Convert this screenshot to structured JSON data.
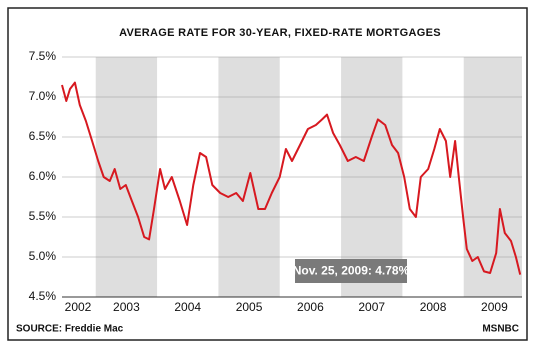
{
  "chart_data": {
    "type": "line",
    "title": "AVERAGE RATE FOR 30-YEAR, FIXED-RATE MORTGAGES",
    "source": "SOURCE: Freddie Mac",
    "credit": "MSNBC",
    "annotation": "Nov. 25, 2009: 4.78%",
    "x": [
      2002.45,
      2002.52,
      2002.58,
      2002.66,
      2002.74,
      2002.84,
      2002.94,
      2003.04,
      2003.13,
      2003.23,
      2003.31,
      2003.4,
      2003.49,
      2003.59,
      2003.69,
      2003.79,
      2003.87,
      2003.95,
      2004.05,
      2004.13,
      2004.24,
      2004.37,
      2004.49,
      2004.59,
      2004.7,
      2004.8,
      2004.9,
      2005.03,
      2005.16,
      2005.29,
      2005.4,
      2005.52,
      2005.65,
      2005.76,
      2005.87,
      2006.0,
      2006.1,
      2006.2,
      2006.33,
      2006.46,
      2006.59,
      2006.69,
      2006.77,
      2006.87,
      2006.98,
      2007.11,
      2007.24,
      2007.37,
      2007.5,
      2007.6,
      2007.72,
      2007.83,
      2007.93,
      2008.03,
      2008.12,
      2008.22,
      2008.3,
      2008.42,
      2008.52,
      2008.61,
      2008.71,
      2008.78,
      2008.86,
      2008.92,
      2008.99,
      2009.05,
      2009.14,
      2009.23,
      2009.33,
      2009.43,
      2009.53,
      2009.59,
      2009.67,
      2009.77,
      2009.85,
      2009.92
    ],
    "series": [
      {
        "name": "30-year fixed rate",
        "color": "#d71920",
        "values": [
          7.15,
          6.95,
          7.1,
          7.18,
          6.9,
          6.7,
          6.45,
          6.2,
          6.0,
          5.95,
          6.1,
          5.85,
          5.9,
          5.7,
          5.5,
          5.25,
          5.22,
          5.6,
          6.1,
          5.85,
          6.0,
          5.7,
          5.4,
          5.9,
          6.3,
          6.25,
          5.9,
          5.8,
          5.75,
          5.8,
          5.7,
          6.05,
          5.6,
          5.6,
          5.8,
          6.0,
          6.35,
          6.2,
          6.4,
          6.6,
          6.65,
          6.72,
          6.78,
          6.55,
          6.4,
          6.2,
          6.25,
          6.2,
          6.5,
          6.72,
          6.65,
          6.4,
          6.3,
          6.0,
          5.6,
          5.5,
          6.0,
          6.1,
          6.35,
          6.6,
          6.45,
          6.0,
          6.45,
          6.0,
          5.5,
          5.1,
          4.95,
          5.0,
          4.82,
          4.8,
          5.05,
          5.6,
          5.3,
          5.2,
          5.0,
          4.78
        ]
      }
    ],
    "xlim": [
      2002.45,
      2009.95
    ],
    "xticks": [
      {
        "value": 2002.5,
        "label": "2002"
      },
      {
        "value": 2003.5,
        "label": "2003"
      },
      {
        "value": 2004.5,
        "label": "2004"
      },
      {
        "value": 2005.5,
        "label": "2005"
      },
      {
        "value": 2006.5,
        "label": "2006"
      },
      {
        "value": 2007.5,
        "label": "2007"
      },
      {
        "value": 2008.5,
        "label": "2008"
      },
      {
        "value": 2009.5,
        "label": "2009"
      }
    ],
    "ylim": [
      4.5,
      7.5
    ],
    "yticks": [
      {
        "value": 4.5,
        "label": "4.5%"
      },
      {
        "value": 5.0,
        "label": "5.0%"
      },
      {
        "value": 5.5,
        "label": "5.5%"
      },
      {
        "value": 6.0,
        "label": "6.0%"
      },
      {
        "value": 6.5,
        "label": "6.5%"
      },
      {
        "value": 7.0,
        "label": "7.0%"
      },
      {
        "value": 7.5,
        "label": "7.5%"
      }
    ],
    "shaded_bands": [
      [
        2003,
        2004
      ],
      [
        2005,
        2006
      ],
      [
        2007,
        2008
      ],
      [
        2009,
        2010
      ]
    ],
    "band_color": "#dedede",
    "grid": true
  }
}
